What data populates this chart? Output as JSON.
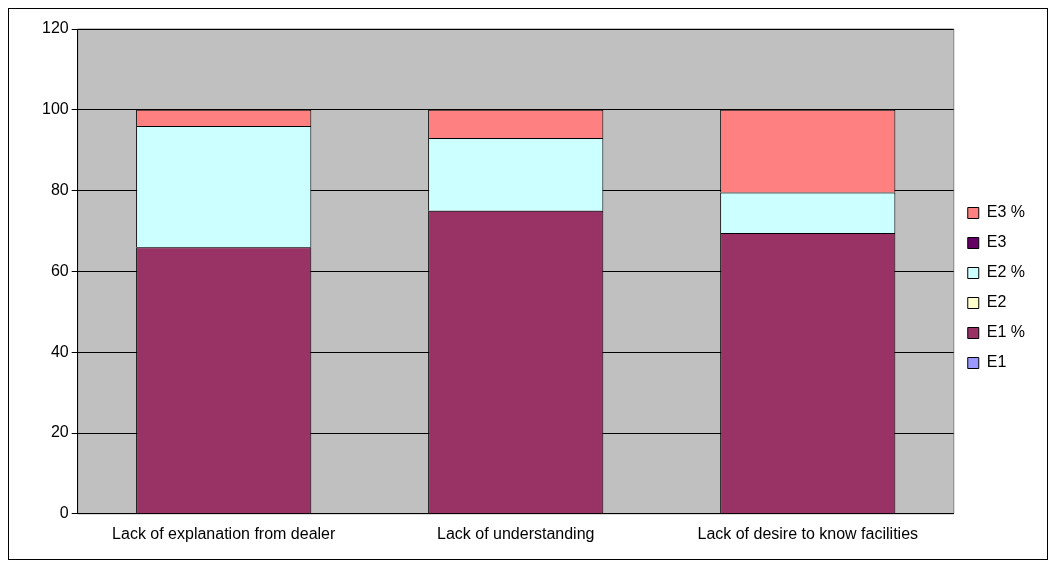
{
  "chart_data": {
    "type": "bar",
    "stacked": true,
    "categories": [
      "Lack of explanation from dealer",
      "Lack of understanding",
      "Lack of desire to know facilities"
    ],
    "series": [
      {
        "name": "E1",
        "color": "#9999ff",
        "values": [
          0,
          0,
          0
        ]
      },
      {
        "name": "E1 %",
        "color": "#993366",
        "values": [
          66,
          75,
          69.5
        ]
      },
      {
        "name": "E2",
        "color": "#ffffcc",
        "values": [
          0,
          0,
          0
        ]
      },
      {
        "name": "E2 %",
        "color": "#ccffff",
        "values": [
          30,
          18,
          10
        ]
      },
      {
        "name": "E3",
        "color": "#660066",
        "values": [
          0,
          0,
          0
        ]
      },
      {
        "name": "E3 %",
        "color": "#ff8080",
        "values": [
          4,
          7,
          20.5
        ]
      }
    ],
    "ylim": [
      0,
      120
    ],
    "yticks": [
      0,
      20,
      40,
      60,
      80,
      100,
      120
    ],
    "grid": "y",
    "legend": "right"
  }
}
